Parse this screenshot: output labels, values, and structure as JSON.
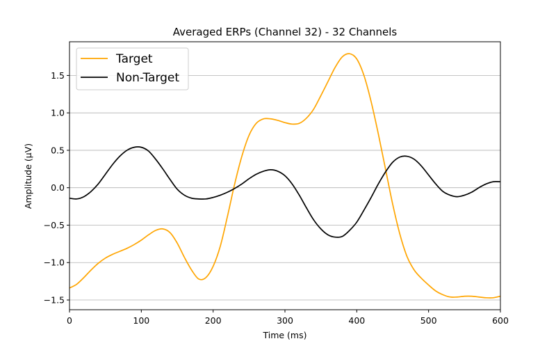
{
  "chart_data": {
    "type": "line",
    "title": "Averaged ERPs (Channel 32) - 32 Channels",
    "xlabel": "Time (ms)",
    "ylabel": "Amplitude (μV)",
    "xlim": [
      0,
      600
    ],
    "ylim": [
      -1.63,
      1.95
    ],
    "x_ticks": [
      0,
      100,
      200,
      300,
      400,
      500,
      600
    ],
    "x_tick_labels": [
      "0",
      "100",
      "200",
      "300",
      "400",
      "500",
      "600"
    ],
    "y_ticks": [
      -1.5,
      -1.0,
      -0.5,
      0.0,
      0.5,
      1.0,
      1.5
    ],
    "y_tick_labels": [
      "−1.5",
      "−1.0",
      "−0.5",
      "0.0",
      "0.5",
      "1.0",
      "1.5"
    ],
    "grid": "horizontal",
    "legend_position": "top-left",
    "series": [
      {
        "name": "Target",
        "color": "#ffa500",
        "x": [
          0,
          10,
          20,
          30,
          40,
          50,
          60,
          70,
          80,
          90,
          100,
          110,
          120,
          130,
          140,
          150,
          160,
          170,
          180,
          190,
          200,
          210,
          220,
          230,
          240,
          250,
          260,
          270,
          280,
          290,
          300,
          310,
          320,
          330,
          340,
          350,
          360,
          370,
          380,
          390,
          400,
          410,
          420,
          430,
          440,
          450,
          460,
          470,
          480,
          490,
          500,
          510,
          520,
          530,
          540,
          550,
          560,
          570,
          580,
          590,
          600
        ],
        "y": [
          -1.34,
          -1.29,
          -1.2,
          -1.1,
          -1.01,
          -0.94,
          -0.89,
          -0.85,
          -0.81,
          -0.76,
          -0.7,
          -0.63,
          -0.57,
          -0.55,
          -0.6,
          -0.74,
          -0.93,
          -1.1,
          -1.22,
          -1.2,
          -1.05,
          -0.78,
          -0.38,
          0.05,
          0.42,
          0.7,
          0.86,
          0.92,
          0.92,
          0.9,
          0.87,
          0.85,
          0.86,
          0.93,
          1.05,
          1.23,
          1.42,
          1.61,
          1.75,
          1.79,
          1.72,
          1.5,
          1.15,
          0.72,
          0.25,
          -0.22,
          -0.62,
          -0.92,
          -1.1,
          -1.21,
          -1.3,
          -1.38,
          -1.43,
          -1.46,
          -1.46,
          -1.45,
          -1.45,
          -1.46,
          -1.47,
          -1.47,
          -1.45
        ]
      },
      {
        "name": "Non-Target",
        "color": "#000000",
        "x": [
          0,
          10,
          20,
          30,
          40,
          50,
          60,
          70,
          80,
          90,
          100,
          110,
          120,
          130,
          140,
          150,
          160,
          170,
          180,
          190,
          200,
          210,
          220,
          230,
          240,
          250,
          260,
          270,
          280,
          290,
          300,
          310,
          320,
          330,
          340,
          350,
          360,
          370,
          380,
          390,
          400,
          410,
          420,
          430,
          440,
          450,
          460,
          470,
          480,
          490,
          500,
          510,
          520,
          530,
          540,
          550,
          560,
          570,
          580,
          590,
          600
        ],
        "y": [
          -0.14,
          -0.15,
          -0.12,
          -0.05,
          0.05,
          0.18,
          0.31,
          0.42,
          0.5,
          0.54,
          0.54,
          0.49,
          0.38,
          0.25,
          0.11,
          -0.02,
          -0.1,
          -0.14,
          -0.15,
          -0.15,
          -0.13,
          -0.1,
          -0.06,
          -0.01,
          0.05,
          0.12,
          0.18,
          0.22,
          0.24,
          0.22,
          0.16,
          0.05,
          -0.1,
          -0.27,
          -0.43,
          -0.55,
          -0.63,
          -0.66,
          -0.65,
          -0.57,
          -0.46,
          -0.3,
          -0.13,
          0.05,
          0.21,
          0.34,
          0.41,
          0.42,
          0.38,
          0.29,
          0.17,
          0.05,
          -0.05,
          -0.1,
          -0.12,
          -0.1,
          -0.06,
          0.0,
          0.05,
          0.08,
          0.08
        ]
      }
    ]
  }
}
